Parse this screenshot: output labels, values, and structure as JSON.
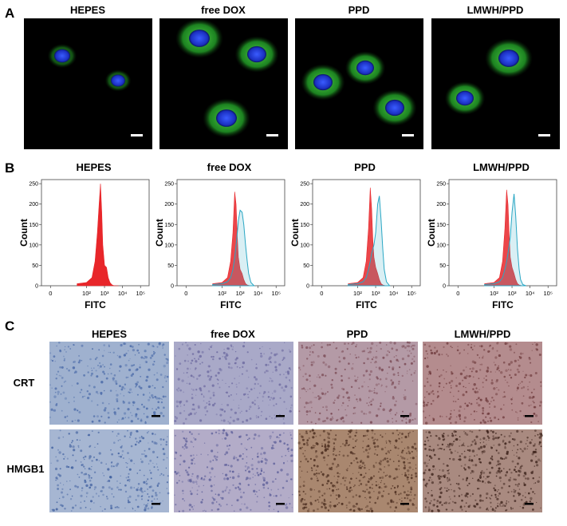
{
  "panel_labels": [
    "A",
    "B",
    "C"
  ],
  "panel_a": {
    "titles": [
      "HEPES",
      "free DOX",
      "PPD",
      "LMWH/PPD"
    ]
  },
  "panel_c": {
    "titles": [
      "HEPES",
      "free DOX",
      "PPD",
      "LMWH/PPD"
    ],
    "row_labels": [
      "CRT",
      "HMGB1"
    ]
  },
  "chart_data": [
    {
      "type": "area",
      "title": "HEPES",
      "xlabel": "FITC",
      "ylabel": "Count",
      "xscale": "biexponential",
      "x": [
        30,
        100,
        200,
        300,
        400,
        500,
        600,
        700,
        800,
        1000,
        1300,
        1600,
        2000,
        2500,
        3000,
        4000,
        6000
      ],
      "series": [
        {
          "color": "#e8262a",
          "style": "filled",
          "values": [
            5,
            8,
            20,
            60,
            130,
            200,
            250,
            180,
            100,
            50,
            45,
            20,
            8,
            3,
            1,
            0,
            0
          ]
        }
      ],
      "xlim": [
        -5,
        300000
      ],
      "xticks": [
        {
          "value": 0,
          "label": "0"
        },
        {
          "value": 100,
          "label": "10²"
        },
        {
          "value": 1000,
          "label": "10³"
        },
        {
          "value": 10000,
          "label": "10⁴"
        },
        {
          "value": 100000,
          "label": "10⁵"
        }
      ],
      "ylim": [
        0,
        260
      ],
      "yticks": [
        0,
        50,
        100,
        150,
        200,
        250
      ]
    },
    {
      "type": "area",
      "title": "free DOX",
      "xlabel": "FITC",
      "ylabel": "Count",
      "xscale": "biexponential",
      "x": [
        30,
        100,
        200,
        300,
        400,
        500,
        600,
        700,
        800,
        1000,
        1300,
        1600,
        2000,
        2500,
        3000,
        4000,
        6000
      ],
      "series": [
        {
          "color": "#e8262a",
          "style": "filled",
          "values": [
            5,
            8,
            20,
            60,
            130,
            230,
            200,
            120,
            70,
            40,
            30,
            15,
            5,
            2,
            1,
            0,
            0
          ]
        },
        {
          "color": "#2aa7c4",
          "style": "outlined",
          "values": [
            3,
            5,
            10,
            20,
            40,
            70,
            100,
            130,
            160,
            185,
            180,
            150,
            100,
            60,
            30,
            8,
            0
          ]
        }
      ],
      "xlim": [
        -5,
        300000
      ],
      "xticks": [
        {
          "value": 0,
          "label": "0"
        },
        {
          "value": 100,
          "label": "10²"
        },
        {
          "value": 1000,
          "label": "10³"
        },
        {
          "value": 10000,
          "label": "10⁴"
        },
        {
          "value": 100000,
          "label": "10⁵"
        }
      ],
      "ylim": [
        0,
        260
      ],
      "yticks": [
        0,
        50,
        100,
        150,
        200,
        250
      ]
    },
    {
      "type": "area",
      "title": "PPD",
      "xlabel": "FITC",
      "ylabel": "Count",
      "xscale": "biexponential",
      "x": [
        30,
        100,
        200,
        300,
        400,
        500,
        600,
        700,
        800,
        1000,
        1300,
        1600,
        2000,
        2500,
        3000,
        4000,
        6000
      ],
      "series": [
        {
          "color": "#e8262a",
          "style": "filled",
          "values": [
            5,
            8,
            20,
            60,
            140,
            240,
            190,
            110,
            70,
            45,
            30,
            15,
            5,
            2,
            1,
            0,
            0
          ]
        },
        {
          "color": "#2aa7c4",
          "style": "outlined",
          "values": [
            3,
            5,
            10,
            20,
            40,
            60,
            80,
            90,
            100,
            130,
            200,
            220,
            160,
            90,
            40,
            10,
            0
          ]
        }
      ],
      "xlim": [
        -5,
        300000
      ],
      "xticks": [
        {
          "value": 0,
          "label": "0"
        },
        {
          "value": 100,
          "label": "10²"
        },
        {
          "value": 1000,
          "label": "10³"
        },
        {
          "value": 10000,
          "label": "10⁴"
        },
        {
          "value": 100000,
          "label": "10⁵"
        }
      ],
      "ylim": [
        0,
        260
      ],
      "yticks": [
        0,
        50,
        100,
        150,
        200,
        250
      ]
    },
    {
      "type": "area",
      "title": "LMWH/PPD",
      "xlabel": "FITC",
      "ylabel": "Count",
      "xscale": "biexponential",
      "x": [
        30,
        100,
        200,
        300,
        400,
        500,
        600,
        700,
        800,
        1000,
        1300,
        1600,
        2000,
        2500,
        3000,
        4000,
        6000
      ],
      "series": [
        {
          "color": "#e8262a",
          "style": "filled",
          "values": [
            5,
            8,
            20,
            60,
            140,
            235,
            200,
            120,
            70,
            45,
            30,
            15,
            5,
            2,
            1,
            0,
            0
          ]
        },
        {
          "color": "#2aa7c4",
          "style": "outlined",
          "values": [
            3,
            5,
            10,
            20,
            40,
            60,
            80,
            100,
            120,
            180,
            225,
            170,
            90,
            40,
            15,
            3,
            0
          ]
        }
      ],
      "xlim": [
        -5,
        300000
      ],
      "xticks": [
        {
          "value": 0,
          "label": "0"
        },
        {
          "value": 100,
          "label": "10²"
        },
        {
          "value": 1000,
          "label": "10³"
        },
        {
          "value": 10000,
          "label": "10⁴"
        },
        {
          "value": 100000,
          "label": "10⁵"
        }
      ],
      "ylim": [
        0,
        260
      ],
      "yticks": [
        0,
        50,
        100,
        150,
        200,
        250
      ]
    }
  ]
}
